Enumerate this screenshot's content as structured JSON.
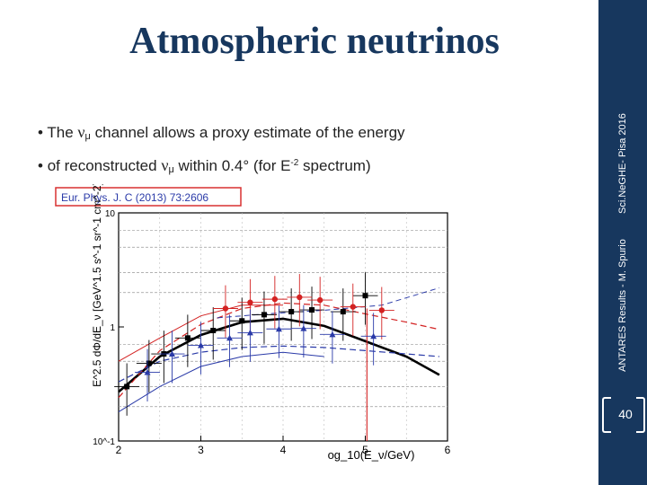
{
  "slide": {
    "title": "Atmospheric neutrinos",
    "bullets": [
      {
        "marker": "•",
        "pre": "The ",
        "sym": "ν",
        "sub": "μ",
        "post": " channel allows a proxy estimate of the energy"
      },
      {
        "marker": "•",
        "pre": " of reconstructed ",
        "sym": "ν",
        "sub": "μ",
        "post": " within 0.4° (for E",
        "sup": "-2",
        "post2": " spectrum)"
      }
    ],
    "sidebar": {
      "left_text": "ANTARES Results - M. Spurio",
      "right_text": "Sci.NeGHE- Pisa 2016",
      "page_number": "40",
      "color": "#17375e"
    }
  },
  "chart_data": {
    "type": "scatter",
    "reference": "Eur. Phys. J. C (2013) 73:2606",
    "ylabel": "E^2.5 dΦ/dE_ν [GeV^1.5 s^-1 sr^-1 cm^-2]",
    "xlabel": "og_10(E_ν/GeV)",
    "xlim": [
      2,
      6
    ],
    "ylim": [
      0.1,
      10
    ],
    "log_y": true,
    "x_ticks": [
      "2",
      "3",
      "4",
      "5",
      "6"
    ],
    "y_ticks": [
      "10^-1",
      "1",
      "10"
    ],
    "series": [
      {
        "color": "#000000",
        "marker": "square",
        "x": [
          2.1,
          2.37,
          2.55,
          2.84,
          3.15,
          3.5,
          3.77,
          4.1,
          4.35,
          4.73,
          5.0
        ],
        "y": [
          0.3,
          0.48,
          0.58,
          0.8,
          0.93,
          1.13,
          1.28,
          1.36,
          1.41,
          1.36,
          1.88
        ]
      },
      {
        "color": "#d32222",
        "marker": "circle",
        "x": [
          3.3,
          3.6,
          3.9,
          4.2,
          4.45,
          4.85,
          5.2
        ],
        "y": [
          1.45,
          1.64,
          1.75,
          1.82,
          1.72,
          1.5,
          1.4
        ]
      },
      {
        "color": "#2a3aa8",
        "marker": "triangle",
        "x": [
          2.35,
          2.65,
          3.0,
          3.35,
          3.6,
          3.95,
          4.25,
          4.6,
          5.1
        ],
        "y": [
          0.4,
          0.58,
          0.69,
          0.8,
          0.89,
          0.96,
          0.97,
          0.86,
          0.83
        ]
      }
    ]
  }
}
